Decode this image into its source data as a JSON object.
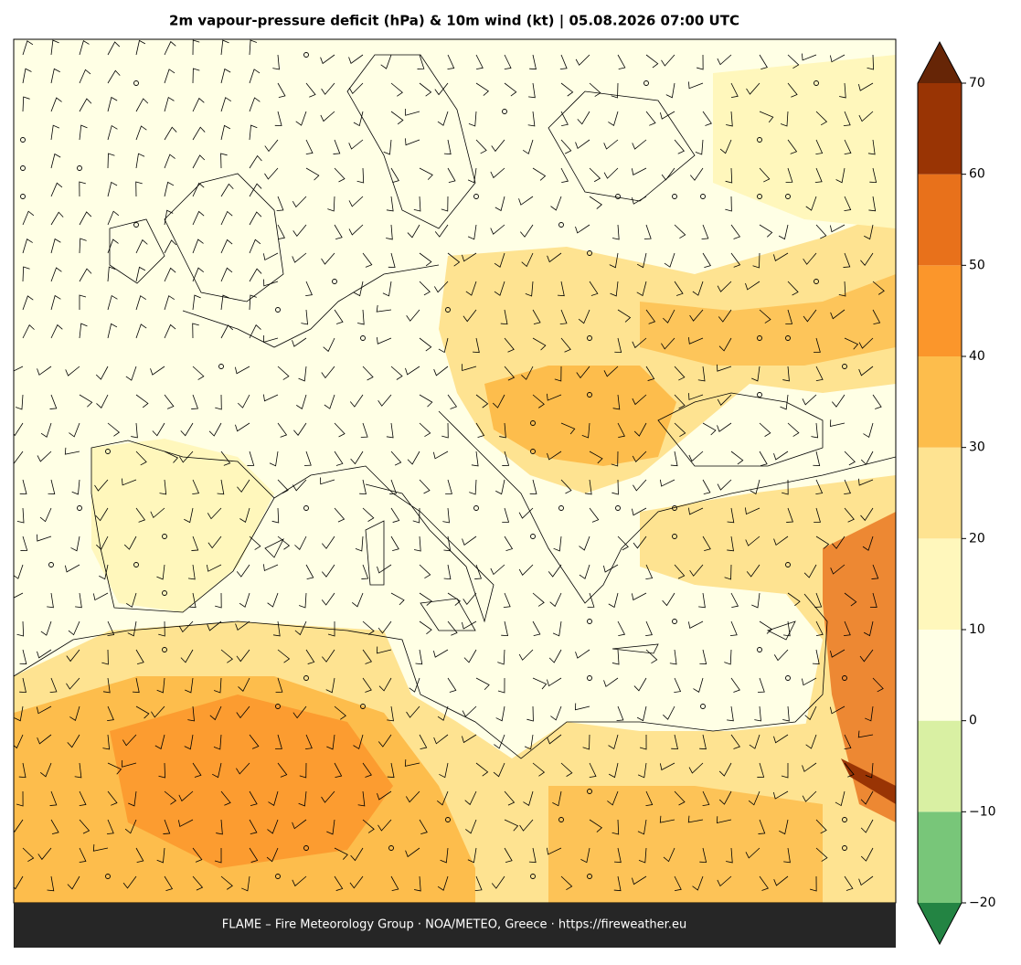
{
  "title": "2m vapour-pressure deficit (hPa) & 10m wind (kt)  |  05.08.2026 07:00 UTC",
  "footer": "FLAME – Fire Meteorology Group · NOA/METEO, Greece · https://fireweather.eu",
  "colorbar": {
    "levels": [
      -20,
      -10,
      0,
      10,
      20,
      30,
      40,
      50,
      60,
      70
    ],
    "colors": [
      "#78c679",
      "#d9f0a3",
      "#ffffe5",
      "#fff7bc",
      "#fee391",
      "#fdbd4c",
      "#fb962b",
      "#e8711b",
      "#993404"
    ],
    "under_color": "#238443",
    "over_color": "#662506",
    "ticks": [
      {
        "value": -20,
        "label": "−20"
      },
      {
        "value": -10,
        "label": "−10"
      },
      0,
      10,
      20,
      30,
      40,
      50,
      60,
      70
    ]
  }
}
